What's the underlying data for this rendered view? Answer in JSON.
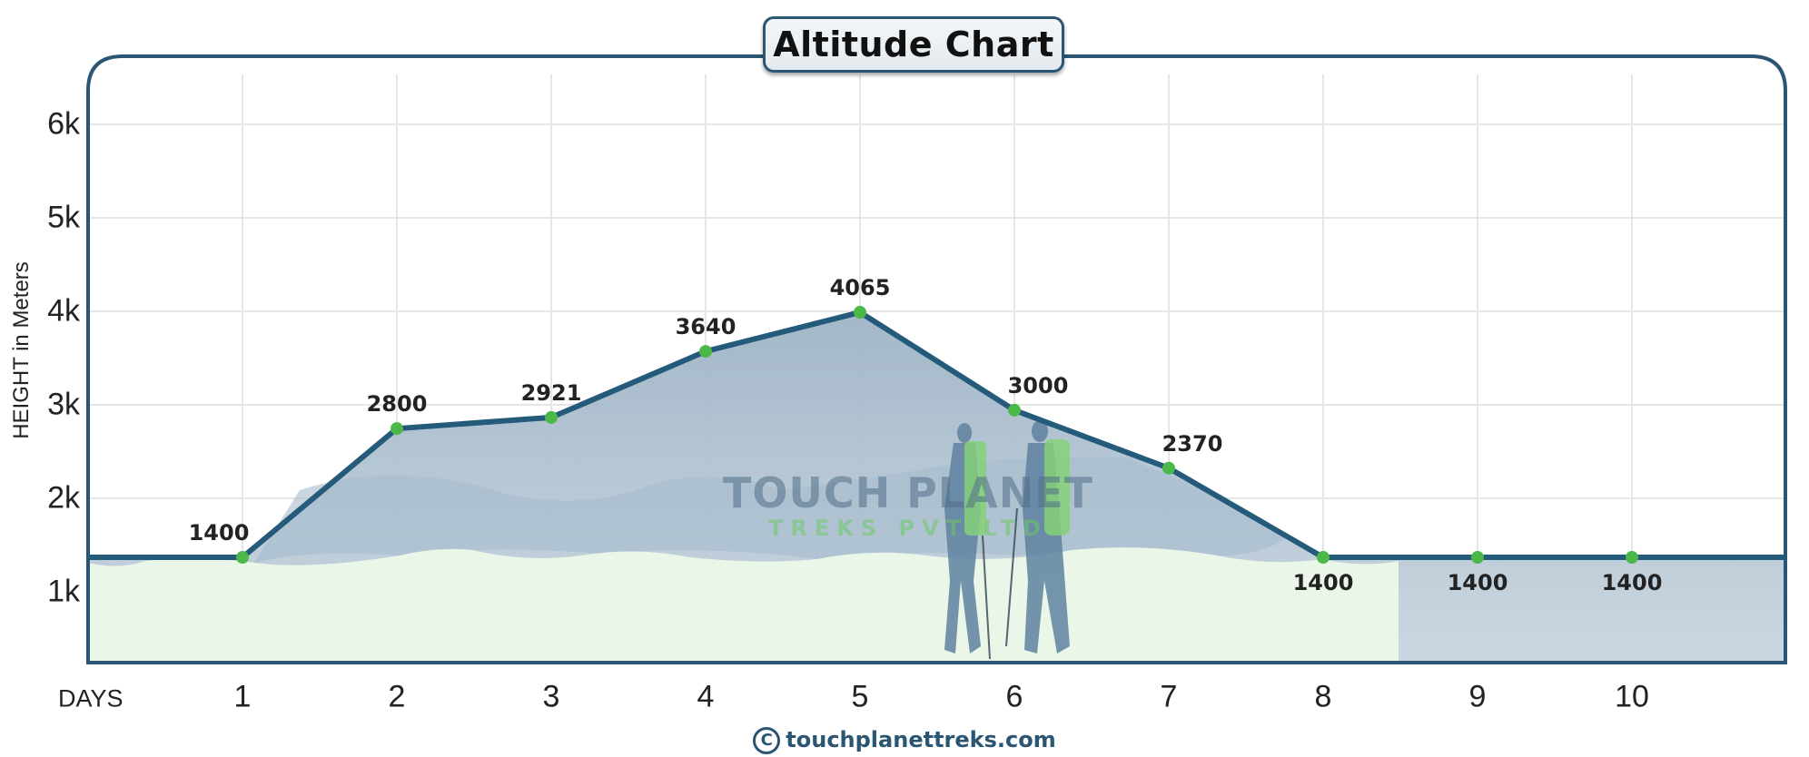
{
  "title": "Altitude Chart",
  "y_axis_label": "HEIGHT in Meters",
  "x_axis_label": "DAYS",
  "watermark": {
    "line1": "TOUCH PLANET",
    "line2": "TREKS PVT LTD"
  },
  "footer": {
    "copyright_symbol": "C",
    "site": "touchplanettreks.com"
  },
  "colors": {
    "line": "#245a7a",
    "point": "#4cb848",
    "frame": "#2a5674",
    "ground_fill": "#e9f6e8",
    "mountain_fill": "#b4c6d4",
    "grid": "#e6e6e6"
  },
  "chart_data": {
    "type": "line",
    "title": "Altitude Chart",
    "xlabel": "DAYS",
    "ylabel": "HEIGHT in Meters",
    "categories": [
      "1",
      "2",
      "3",
      "4",
      "5",
      "6",
      "7",
      "8",
      "9",
      "10"
    ],
    "x": [
      1,
      2,
      3,
      4,
      5,
      6,
      7,
      8,
      9,
      10
    ],
    "values": [
      1400,
      2800,
      2921,
      3640,
      4065,
      3000,
      2370,
      1400,
      1400,
      1400
    ],
    "point_labels": [
      "1400",
      "2800",
      "2921",
      "3640",
      "4065",
      "3000",
      "2370",
      "1400",
      "1400",
      "1400"
    ],
    "y_ticks": [
      1000,
      2000,
      3000,
      4000,
      5000,
      6000
    ],
    "y_tick_labels": [
      "1k",
      "2k",
      "3k",
      "4k",
      "5k",
      "6k"
    ],
    "ylim": [
      0,
      6500
    ],
    "grid": true,
    "legend": null
  }
}
